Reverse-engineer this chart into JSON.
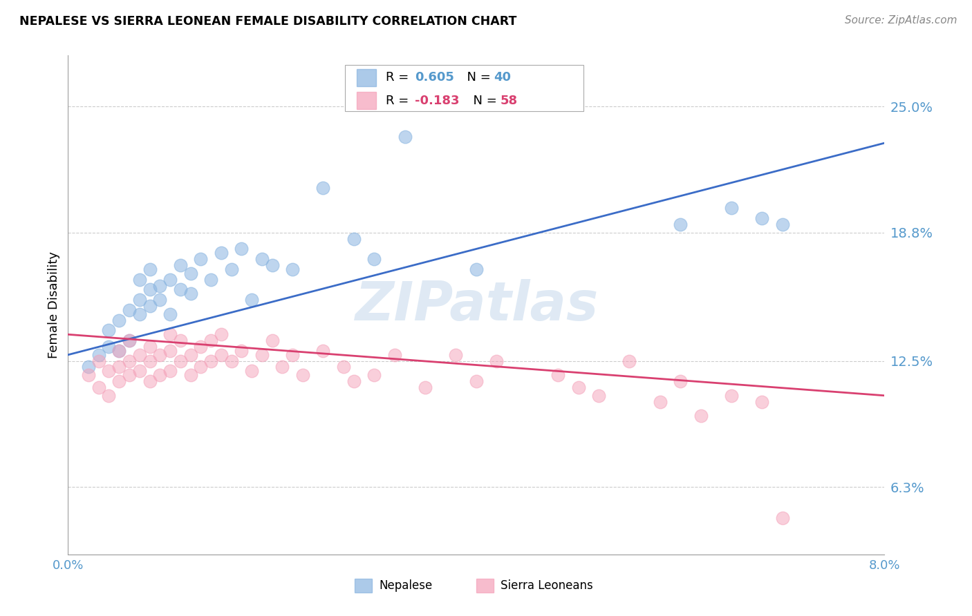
{
  "title": "NEPALESE VS SIERRA LEONEAN FEMALE DISABILITY CORRELATION CHART",
  "source": "Source: ZipAtlas.com",
  "ylabel": "Female Disability",
  "ytick_labels": [
    "25.0%",
    "18.8%",
    "12.5%",
    "6.3%"
  ],
  "ytick_values": [
    0.25,
    0.188,
    0.125,
    0.063
  ],
  "xlim": [
    0.0,
    0.08
  ],
  "ylim": [
    0.03,
    0.275
  ],
  "blue_color": "#89B4E0",
  "pink_color": "#F4A0B8",
  "line_blue": "#3B6CC7",
  "line_pink": "#D94070",
  "axis_tick_color": "#5599CC",
  "grid_color": "#CCCCCC",
  "watermark_text": "ZIPatlas",
  "legend_r1": "0.605",
  "legend_n1": "40",
  "legend_r2": "-0.183",
  "legend_n2": "58",
  "blue_scatter_x": [
    0.002,
    0.003,
    0.004,
    0.004,
    0.005,
    0.005,
    0.006,
    0.006,
    0.007,
    0.007,
    0.007,
    0.008,
    0.008,
    0.008,
    0.009,
    0.009,
    0.01,
    0.01,
    0.011,
    0.011,
    0.012,
    0.012,
    0.013,
    0.014,
    0.015,
    0.016,
    0.017,
    0.018,
    0.019,
    0.02,
    0.022,
    0.025,
    0.028,
    0.03,
    0.033,
    0.04,
    0.06,
    0.065,
    0.068,
    0.07
  ],
  "blue_scatter_y": [
    0.122,
    0.128,
    0.132,
    0.14,
    0.13,
    0.145,
    0.135,
    0.15,
    0.148,
    0.155,
    0.165,
    0.152,
    0.16,
    0.17,
    0.155,
    0.162,
    0.148,
    0.165,
    0.16,
    0.172,
    0.158,
    0.168,
    0.175,
    0.165,
    0.178,
    0.17,
    0.18,
    0.155,
    0.175,
    0.172,
    0.17,
    0.21,
    0.185,
    0.175,
    0.235,
    0.17,
    0.192,
    0.2,
    0.195,
    0.192
  ],
  "pink_scatter_x": [
    0.002,
    0.003,
    0.003,
    0.004,
    0.004,
    0.005,
    0.005,
    0.005,
    0.006,
    0.006,
    0.006,
    0.007,
    0.007,
    0.008,
    0.008,
    0.008,
    0.009,
    0.009,
    0.01,
    0.01,
    0.01,
    0.011,
    0.011,
    0.012,
    0.012,
    0.013,
    0.013,
    0.014,
    0.014,
    0.015,
    0.015,
    0.016,
    0.017,
    0.018,
    0.019,
    0.02,
    0.021,
    0.022,
    0.023,
    0.025,
    0.027,
    0.028,
    0.03,
    0.032,
    0.035,
    0.038,
    0.04,
    0.042,
    0.048,
    0.05,
    0.052,
    0.055,
    0.058,
    0.06,
    0.062,
    0.065,
    0.068,
    0.07
  ],
  "pink_scatter_y": [
    0.118,
    0.112,
    0.125,
    0.108,
    0.12,
    0.115,
    0.122,
    0.13,
    0.118,
    0.125,
    0.135,
    0.12,
    0.128,
    0.115,
    0.125,
    0.132,
    0.118,
    0.128,
    0.12,
    0.13,
    0.138,
    0.125,
    0.135,
    0.118,
    0.128,
    0.122,
    0.132,
    0.125,
    0.135,
    0.128,
    0.138,
    0.125,
    0.13,
    0.12,
    0.128,
    0.135,
    0.122,
    0.128,
    0.118,
    0.13,
    0.122,
    0.115,
    0.118,
    0.128,
    0.112,
    0.128,
    0.115,
    0.125,
    0.118,
    0.112,
    0.108,
    0.125,
    0.105,
    0.115,
    0.098,
    0.108,
    0.105,
    0.048
  ],
  "blue_line_x0": 0.0,
  "blue_line_x1": 0.08,
  "blue_line_y0": 0.128,
  "blue_line_y1": 0.232,
  "pink_line_x0": 0.0,
  "pink_line_x1": 0.08,
  "pink_line_y0": 0.138,
  "pink_line_y1": 0.108
}
